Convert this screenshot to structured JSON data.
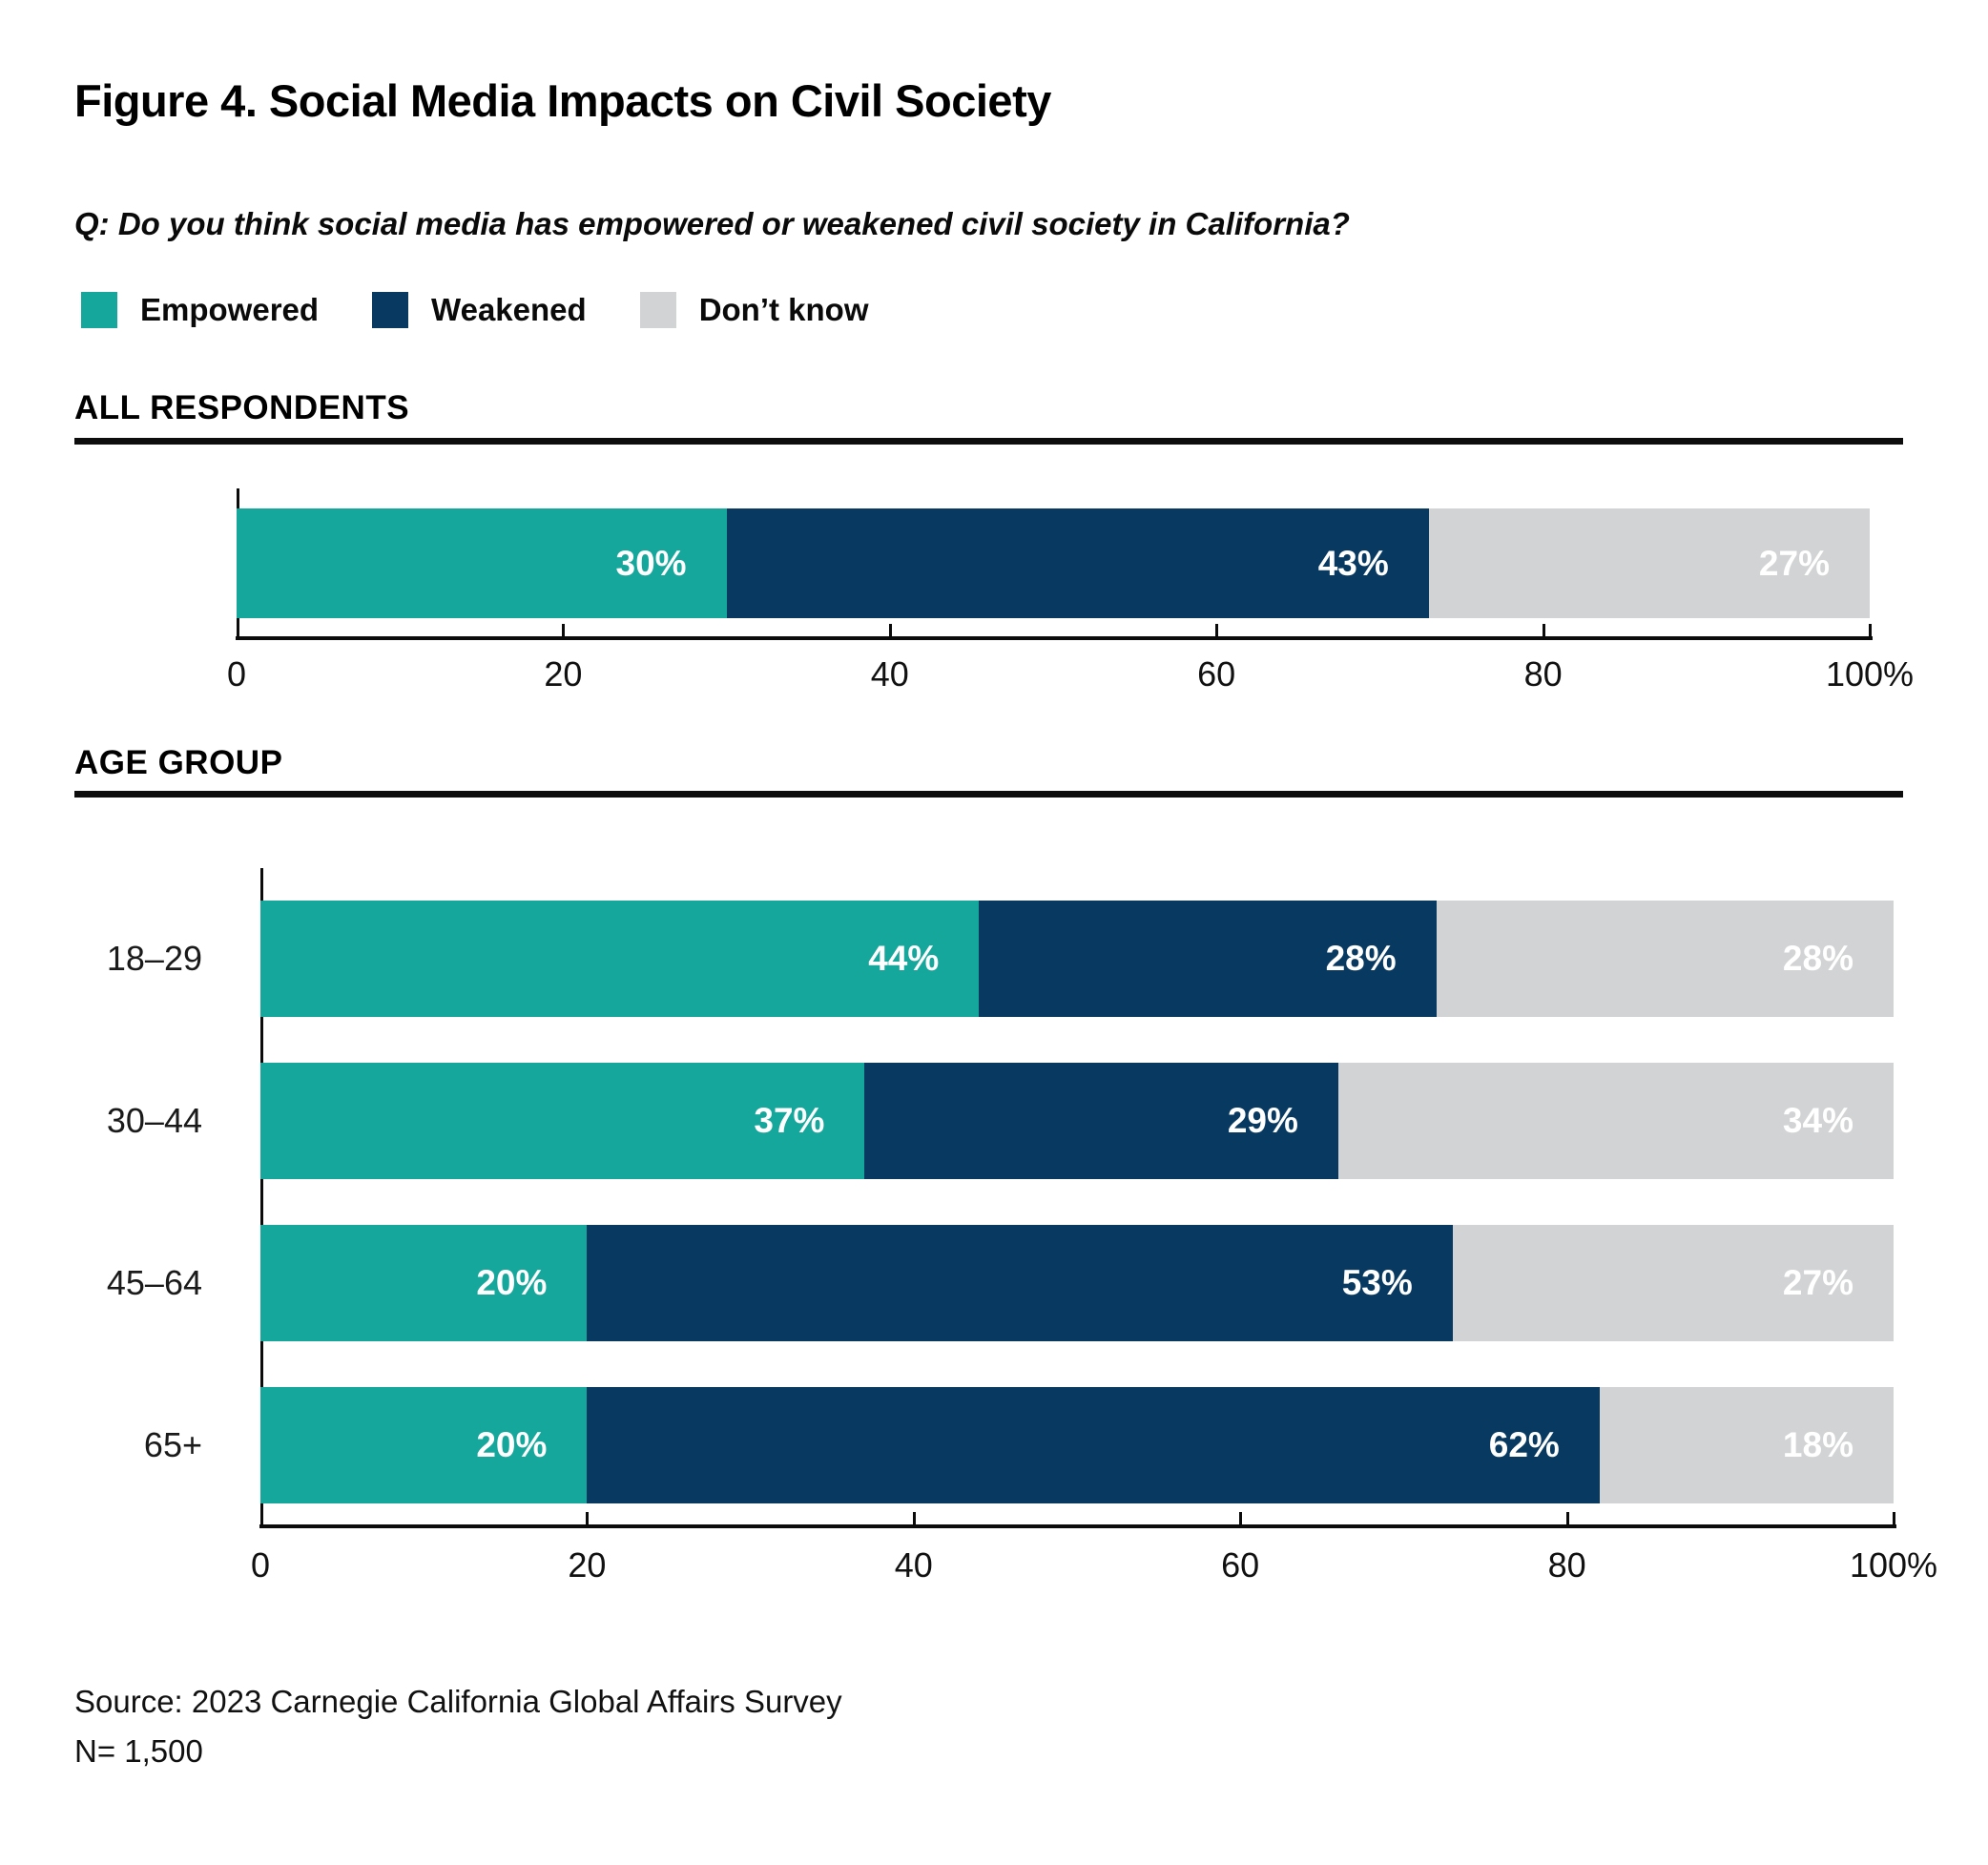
{
  "title": "Figure 4. Social Media Impacts on Civil Society",
  "question": "Q: Do you think social media has empowered or weakened civil society in California?",
  "colors": {
    "empowered": "#15A79B",
    "weakened": "#083A61",
    "dont_know": "#D2D3D4",
    "axis": "#0b0b0b"
  },
  "legend": [
    {
      "label": "Empowered",
      "color": "#15A79B"
    },
    {
      "label": "Weakened",
      "color": "#083A61"
    },
    {
      "label": "Don’t know",
      "color": "#D2D3D4"
    }
  ],
  "sections": {
    "all": {
      "heading": "ALL RESPONDENTS"
    },
    "age": {
      "heading": "AGE GROUP"
    }
  },
  "chart_data": [
    {
      "id": "chart-all",
      "type": "bar",
      "variant": "horizontal-stacked",
      "section": "ALL RESPONDENTS",
      "categories": [
        "All respondents"
      ],
      "series": [
        {
          "name": "Empowered",
          "color": "#15A79B",
          "values": [
            30
          ]
        },
        {
          "name": "Weakened",
          "color": "#083A61",
          "values": [
            43
          ]
        },
        {
          "name": "Don’t know",
          "color": "#D2D3D4",
          "values": [
            27
          ]
        }
      ],
      "value_suffix": "%",
      "xlim": [
        0,
        100
      ],
      "xticks": [
        {
          "value": 0,
          "label": "0"
        },
        {
          "value": 20,
          "label": "20"
        },
        {
          "value": 40,
          "label": "40"
        },
        {
          "value": 60,
          "label": "60"
        },
        {
          "value": 80,
          "label": "80"
        },
        {
          "value": 100,
          "label": "100%"
        }
      ],
      "show_category_labels": false
    },
    {
      "id": "chart-age",
      "type": "bar",
      "variant": "horizontal-stacked",
      "section": "AGE GROUP",
      "categories": [
        "18–29",
        "30–44",
        "45–64",
        "65+"
      ],
      "series": [
        {
          "name": "Empowered",
          "color": "#15A79B",
          "values": [
            44,
            37,
            20,
            20
          ]
        },
        {
          "name": "Weakened",
          "color": "#083A61",
          "values": [
            28,
            29,
            53,
            62
          ]
        },
        {
          "name": "Don’t know",
          "color": "#D2D3D4",
          "values": [
            28,
            34,
            27,
            18
          ]
        }
      ],
      "value_suffix": "%",
      "xlim": [
        0,
        100
      ],
      "xticks": [
        {
          "value": 0,
          "label": "0"
        },
        {
          "value": 20,
          "label": "20"
        },
        {
          "value": 40,
          "label": "40"
        },
        {
          "value": 60,
          "label": "60"
        },
        {
          "value": 80,
          "label": "80"
        },
        {
          "value": 100,
          "label": "100%"
        }
      ],
      "show_category_labels": true
    }
  ],
  "source": {
    "line1": "Source: 2023 Carnegie California Global Affairs Survey",
    "line2": "N= 1,500"
  }
}
